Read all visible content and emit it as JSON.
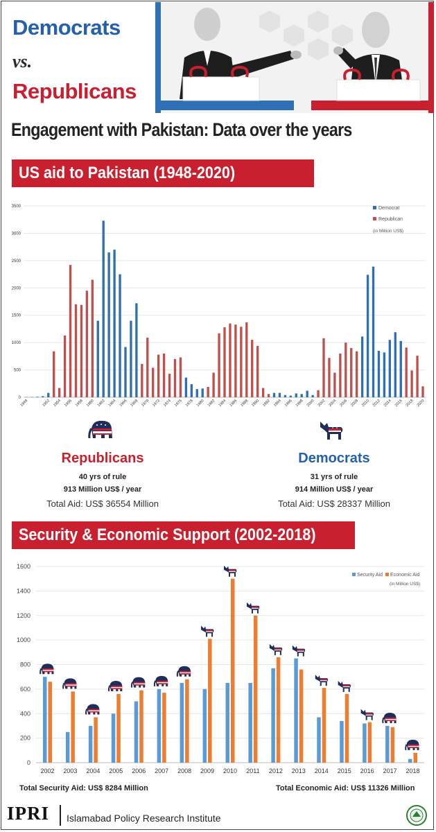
{
  "header": {
    "democrats": "Democrats",
    "vs": "vs.",
    "republicans": "Republicans",
    "subtitle": "Engagement with Pakistan: Data over the years"
  },
  "section1": {
    "title": "US aid to Pakistan (1948-2020)"
  },
  "section2": {
    "title": "Security & Economic Support (2002-2018)"
  },
  "colors": {
    "democrat_blue": "#2e6fb5",
    "republican_red": "#c0504d",
    "security_blue": "#5b9bd5",
    "economic_orange": "#ed7d31",
    "banner_red": "#c8202f"
  },
  "republicans_summary": {
    "name": "Republicans",
    "years": "40 yrs of rule",
    "per_year": "913 Million US$ / year",
    "total": "Total Aid: US$ 36554 Million",
    "icon": "elephant-icon"
  },
  "democrats_summary": {
    "name": "Democrats",
    "years": "31 yrs of rule",
    "per_year": "914 Million US$ / year",
    "total": "Total Aid: US$ 28337 Million",
    "icon": "donkey-icon"
  },
  "footer": {
    "security_total": "Total Security Aid: US$ 8284 Million",
    "economic_total": "Total Economic Aid: US$ 11326 Million",
    "org_short": "IPRI",
    "org_long": "Islamabad Policy Research Institute"
  },
  "chart_data": [
    {
      "type": "bar",
      "legend": [
        "Democrat",
        "Republican"
      ],
      "note": "(in Million US$)",
      "ylim": [
        0,
        3500
      ],
      "yticks": [
        0,
        500,
        1000,
        1500,
        2000,
        2500,
        3000,
        3500
      ],
      "xtick_labels": [
        "1948",
        "1952",
        "1954",
        "1956",
        "1958",
        "1960",
        "1962",
        "1964",
        "1966",
        "1968",
        "1970",
        "1972",
        "1974",
        "1976",
        "1978",
        "1980",
        "1982",
        "1984",
        "1986",
        "1988",
        "1990",
        "1992",
        "1994",
        "1996",
        "1998",
        "2000",
        "2002",
        "2004",
        "2006",
        "2008",
        "2010",
        "2012",
        "2014",
        "2016",
        "2018",
        "2020"
      ],
      "bars": [
        {
          "year": 1948,
          "value": 5,
          "party": "D"
        },
        {
          "year": 1949,
          "value": 5,
          "party": "D"
        },
        {
          "year": 1950,
          "value": 10,
          "party": "D"
        },
        {
          "year": 1951,
          "value": 20,
          "party": "D"
        },
        {
          "year": 1952,
          "value": 80,
          "party": "D"
        },
        {
          "year": 1953,
          "value": 840,
          "party": "R"
        },
        {
          "year": 1954,
          "value": 170,
          "party": "R"
        },
        {
          "year": 1955,
          "value": 1130,
          "party": "R"
        },
        {
          "year": 1956,
          "value": 2420,
          "party": "R"
        },
        {
          "year": 1957,
          "value": 1700,
          "party": "R"
        },
        {
          "year": 1958,
          "value": 1690,
          "party": "R"
        },
        {
          "year": 1959,
          "value": 1950,
          "party": "R"
        },
        {
          "year": 1960,
          "value": 2150,
          "party": "R"
        },
        {
          "year": 1961,
          "value": 1400,
          "party": "D"
        },
        {
          "year": 1962,
          "value": 3230,
          "party": "D"
        },
        {
          "year": 1963,
          "value": 2650,
          "party": "D"
        },
        {
          "year": 1964,
          "value": 2700,
          "party": "D"
        },
        {
          "year": 1965,
          "value": 2250,
          "party": "D"
        },
        {
          "year": 1966,
          "value": 920,
          "party": "D"
        },
        {
          "year": 1967,
          "value": 1400,
          "party": "D"
        },
        {
          "year": 1968,
          "value": 1720,
          "party": "D"
        },
        {
          "year": 1969,
          "value": 610,
          "party": "R"
        },
        {
          "year": 1970,
          "value": 1090,
          "party": "R"
        },
        {
          "year": 1971,
          "value": 540,
          "party": "R"
        },
        {
          "year": 1972,
          "value": 780,
          "party": "R"
        },
        {
          "year": 1973,
          "value": 800,
          "party": "R"
        },
        {
          "year": 1974,
          "value": 430,
          "party": "R"
        },
        {
          "year": 1975,
          "value": 700,
          "party": "R"
        },
        {
          "year": 1976,
          "value": 730,
          "party": "R"
        },
        {
          "year": 1977,
          "value": 360,
          "party": "D"
        },
        {
          "year": 1978,
          "value": 240,
          "party": "D"
        },
        {
          "year": 1979,
          "value": 150,
          "party": "D"
        },
        {
          "year": 1980,
          "value": 160,
          "party": "D"
        },
        {
          "year": 1981,
          "value": 190,
          "party": "R"
        },
        {
          "year": 1982,
          "value": 450,
          "party": "R"
        },
        {
          "year": 1983,
          "value": 1170,
          "party": "R"
        },
        {
          "year": 1984,
          "value": 1280,
          "party": "R"
        },
        {
          "year": 1985,
          "value": 1350,
          "party": "R"
        },
        {
          "year": 1986,
          "value": 1330,
          "party": "R"
        },
        {
          "year": 1987,
          "value": 1290,
          "party": "R"
        },
        {
          "year": 1988,
          "value": 1370,
          "party": "R"
        },
        {
          "year": 1989,
          "value": 1050,
          "party": "R"
        },
        {
          "year": 1990,
          "value": 940,
          "party": "R"
        },
        {
          "year": 1991,
          "value": 170,
          "party": "R"
        },
        {
          "year": 1992,
          "value": 60,
          "party": "R"
        },
        {
          "year": 1993,
          "value": 80,
          "party": "D"
        },
        {
          "year": 1994,
          "value": 80,
          "party": "D"
        },
        {
          "year": 1995,
          "value": 40,
          "party": "D"
        },
        {
          "year": 1996,
          "value": 30,
          "party": "D"
        },
        {
          "year": 1997,
          "value": 70,
          "party": "D"
        },
        {
          "year": 1998,
          "value": 60,
          "party": "D"
        },
        {
          "year": 1999,
          "value": 120,
          "party": "D"
        },
        {
          "year": 2000,
          "value": 40,
          "party": "D"
        },
        {
          "year": 2001,
          "value": 130,
          "party": "R"
        },
        {
          "year": 2002,
          "value": 1080,
          "party": "R"
        },
        {
          "year": 2003,
          "value": 720,
          "party": "R"
        },
        {
          "year": 2004,
          "value": 450,
          "party": "R"
        },
        {
          "year": 2005,
          "value": 800,
          "party": "R"
        },
        {
          "year": 2006,
          "value": 1000,
          "party": "R"
        },
        {
          "year": 2007,
          "value": 900,
          "party": "R"
        },
        {
          "year": 2008,
          "value": 840,
          "party": "R"
        },
        {
          "year": 2009,
          "value": 1110,
          "party": "D"
        },
        {
          "year": 2010,
          "value": 2240,
          "party": "D"
        },
        {
          "year": 2011,
          "value": 2390,
          "party": "D"
        },
        {
          "year": 2012,
          "value": 850,
          "party": "D"
        },
        {
          "year": 2013,
          "value": 820,
          "party": "D"
        },
        {
          "year": 2014,
          "value": 1050,
          "party": "D"
        },
        {
          "year": 2015,
          "value": 1190,
          "party": "D"
        },
        {
          "year": 2016,
          "value": 1030,
          "party": "D"
        },
        {
          "year": 2017,
          "value": 910,
          "party": "R"
        },
        {
          "year": 2018,
          "value": 490,
          "party": "R"
        },
        {
          "year": 2019,
          "value": 760,
          "party": "R"
        },
        {
          "year": 2020,
          "value": 200,
          "party": "R"
        }
      ]
    },
    {
      "type": "bar",
      "categories": [
        "2002",
        "2003",
        "2004",
        "2005",
        "2006",
        "2007",
        "2008",
        "2009",
        "2010",
        "2011",
        "2012",
        "2013",
        "2014",
        "2015",
        "2016",
        "2017",
        "2018"
      ],
      "party_icons": [
        "elephant",
        "elephant",
        "elephant",
        "elephant",
        "elephant",
        "elephant",
        "elephant",
        "donkey",
        "donkey",
        "donkey",
        "donkey",
        "donkey",
        "donkey",
        "donkey",
        "donkey",
        "elephant",
        "elephant"
      ],
      "series": [
        {
          "name": "Security Aid",
          "values": [
            700,
            250,
            300,
            400,
            500,
            600,
            650,
            600,
            650,
            650,
            770,
            850,
            370,
            340,
            320,
            300,
            30
          ]
        },
        {
          "name": "Economic Aid",
          "values": [
            660,
            580,
            370,
            560,
            590,
            570,
            680,
            1010,
            1500,
            1200,
            860,
            760,
            610,
            560,
            330,
            290,
            80
          ]
        }
      ],
      "note": "(in Million US$)",
      "ylim": [
        0,
        1600
      ],
      "yticks": [
        0,
        200,
        400,
        600,
        800,
        1000,
        1200,
        1400,
        1600
      ]
    }
  ]
}
